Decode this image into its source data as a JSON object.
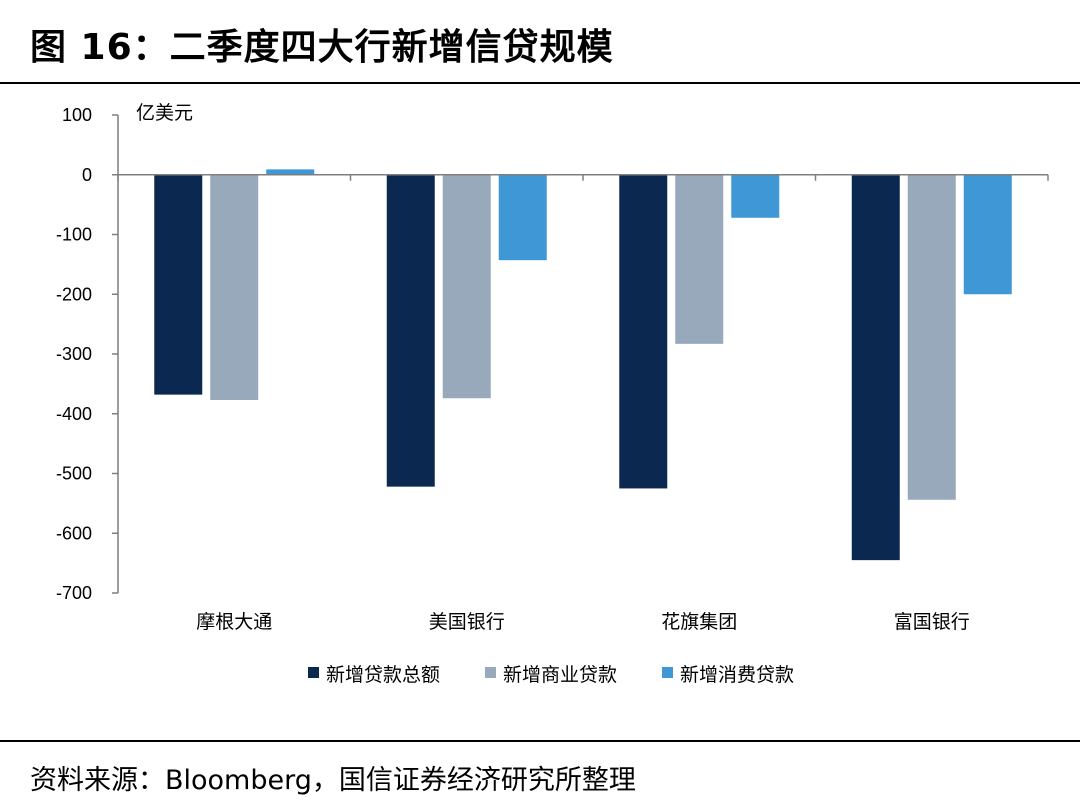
{
  "figure": {
    "title": "图 16：二季度四大行新增信贷规模",
    "source": "资料来源：Bloomberg，国信证券经济研究所整理"
  },
  "chart_data": {
    "type": "bar",
    "title": "",
    "unit": "亿美元",
    "xlabel": "",
    "ylabel": "",
    "ylim": [
      -700,
      100
    ],
    "yticks": [
      100,
      0,
      -100,
      -200,
      -300,
      -400,
      -500,
      -600,
      -700
    ],
    "grid": false,
    "legend_position": "bottom",
    "categories": [
      "摩根大通",
      "美国银行",
      "花旗集团",
      "富国银行"
    ],
    "series": [
      {
        "name": "新增贷款总额",
        "color": "#0b2850",
        "values": [
          -368,
          -522,
          -525,
          -645
        ]
      },
      {
        "name": "新增商业贷款",
        "color": "#98a9bb",
        "values": [
          -377,
          -374,
          -283,
          -544
        ]
      },
      {
        "name": "新增消费贷款",
        "color": "#3f97d6",
        "values": [
          9,
          -143,
          -72,
          -200
        ]
      }
    ]
  }
}
